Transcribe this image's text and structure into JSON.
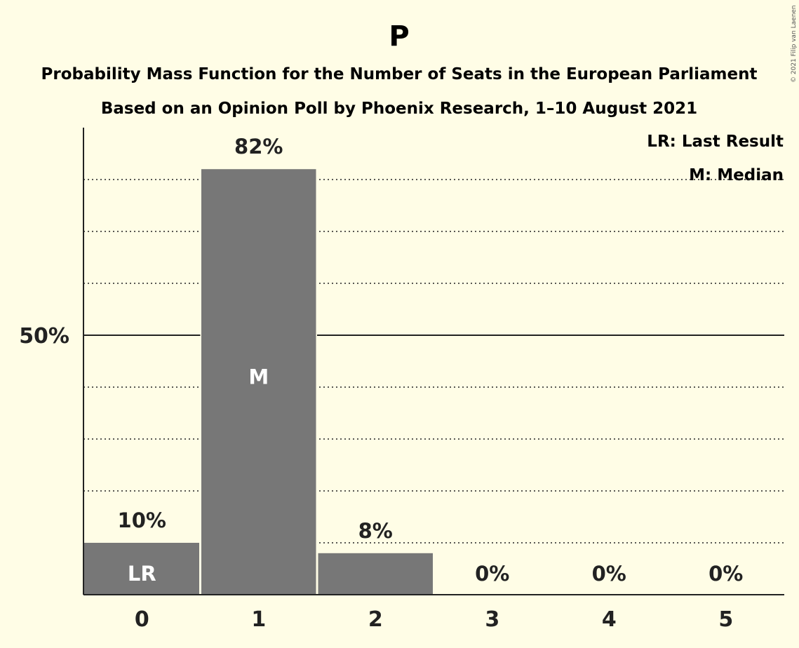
{
  "chart_data": {
    "type": "bar",
    "title": "P",
    "subtitle_line1": "Probability Mass Function for the Number of Seats in the European Parliament",
    "subtitle_line2": "Based on an Opinion Poll by Phoenix Research, 1–10 August 2021",
    "copyright": "© 2021 Filip van Laenen",
    "categories": [
      "0",
      "1",
      "2",
      "3",
      "4",
      "5"
    ],
    "values": [
      10,
      82,
      8,
      0,
      0,
      0
    ],
    "value_labels": [
      "10%",
      "82%",
      "8%",
      "0%",
      "0%",
      "0%"
    ],
    "in_bar_labels": [
      "LR",
      "M",
      "",
      "",
      "",
      ""
    ],
    "ylim": [
      0,
      90
    ],
    "y_ticks": [
      {
        "value": 50,
        "label": "50%"
      }
    ],
    "gridlines": [
      10,
      20,
      30,
      40,
      60,
      70,
      80
    ],
    "legend": [
      "LR: Last Result",
      "M: Median"
    ],
    "legend_position": "top-right",
    "colors": {
      "background": "#fffde6",
      "bar": "#777777",
      "text": "#222222",
      "grid": "#222222"
    }
  }
}
